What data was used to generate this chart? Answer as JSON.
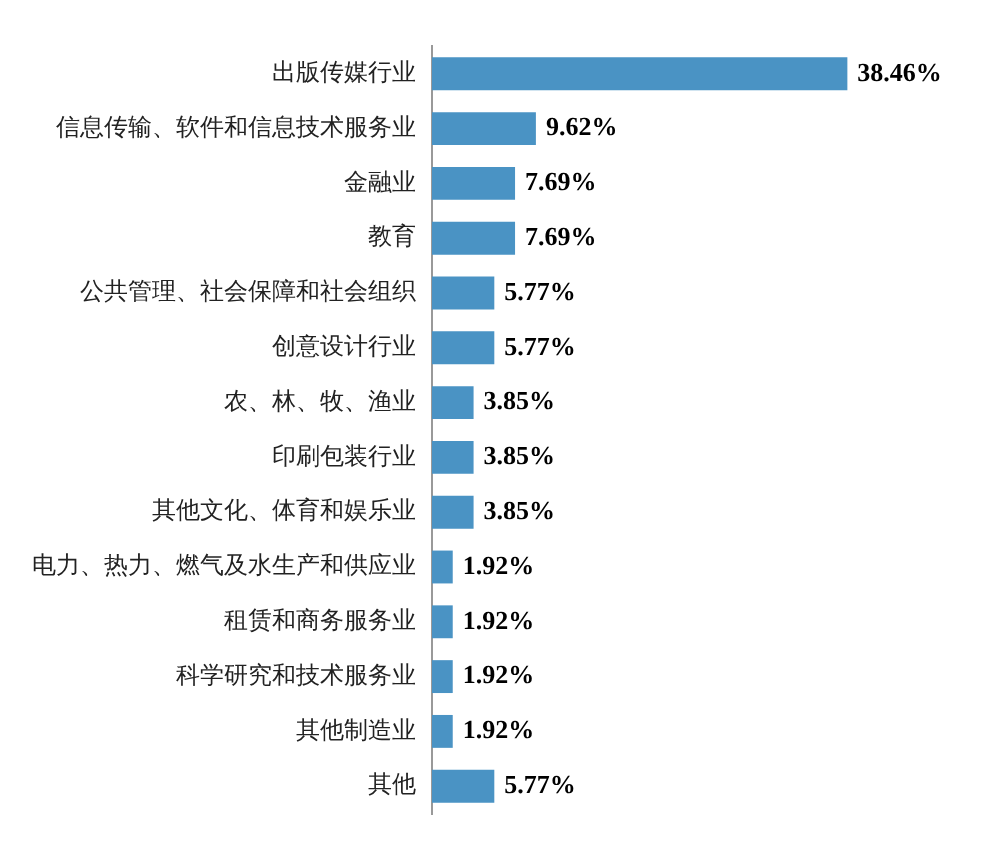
{
  "chart_data": {
    "type": "bar",
    "orientation": "horizontal",
    "categories": [
      "出版传媒行业",
      "信息传输、软件和信息技术服务业",
      "金融业",
      "教育",
      "公共管理、社会保障和社会组织",
      "创意设计行业",
      "农、林、牧、渔业",
      "印刷包装行业",
      "其他文化、体育和娱乐业",
      "电力、热力、燃气及水生产和供应业",
      "租赁和商务服务业",
      "科学研究和技术服务业",
      "其他制造业",
      "其他"
    ],
    "values": [
      38.46,
      9.62,
      7.69,
      7.69,
      5.77,
      5.77,
      3.85,
      3.85,
      3.85,
      1.92,
      1.92,
      1.92,
      1.92,
      5.77
    ],
    "value_labels": [
      "38.46%",
      "9.62%",
      "7.69%",
      "7.69%",
      "5.77%",
      "5.77%",
      "3.85%",
      "3.85%",
      "3.85%",
      "1.92%",
      "1.92%",
      "1.92%",
      "1.92%",
      "5.77%"
    ],
    "color": "#4a93c4"
  }
}
